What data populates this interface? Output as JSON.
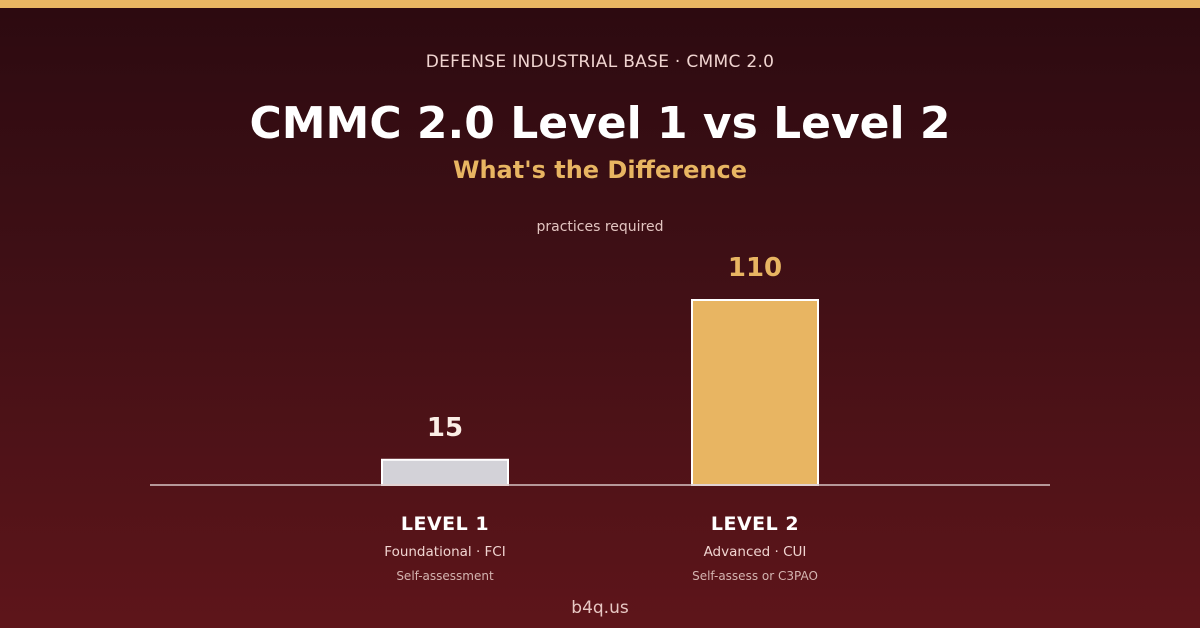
{
  "header": {
    "eyebrow": "DEFENSE INDUSTRIAL BASE  ·  CMMC 2.0",
    "title": "CMMC 2.0 Level 1 vs Level 2",
    "subtitle": "What's the Difference"
  },
  "footer": {
    "text": "b4q.us"
  },
  "colors": {
    "accent": "#e8b562",
    "level1_bar": "#d3d2d8",
    "axis": "#d8c4c4",
    "label_primary": "#ffffff",
    "label_secondary": "#f0d4d0",
    "label_tertiary": "#d4b4b0"
  },
  "chart_data": {
    "type": "bar",
    "ylabel": "practices required",
    "categories": [
      "LEVEL 1",
      "LEVEL 2"
    ],
    "values": [
      15,
      110
    ],
    "ylim": [
      0,
      125
    ],
    "grid": false,
    "category_details": [
      {
        "line1": "Foundational · FCI",
        "line2": "Self-assessment"
      },
      {
        "line1": "Advanced · CUI",
        "line2": "Self-assess or C3PAO"
      }
    ]
  }
}
